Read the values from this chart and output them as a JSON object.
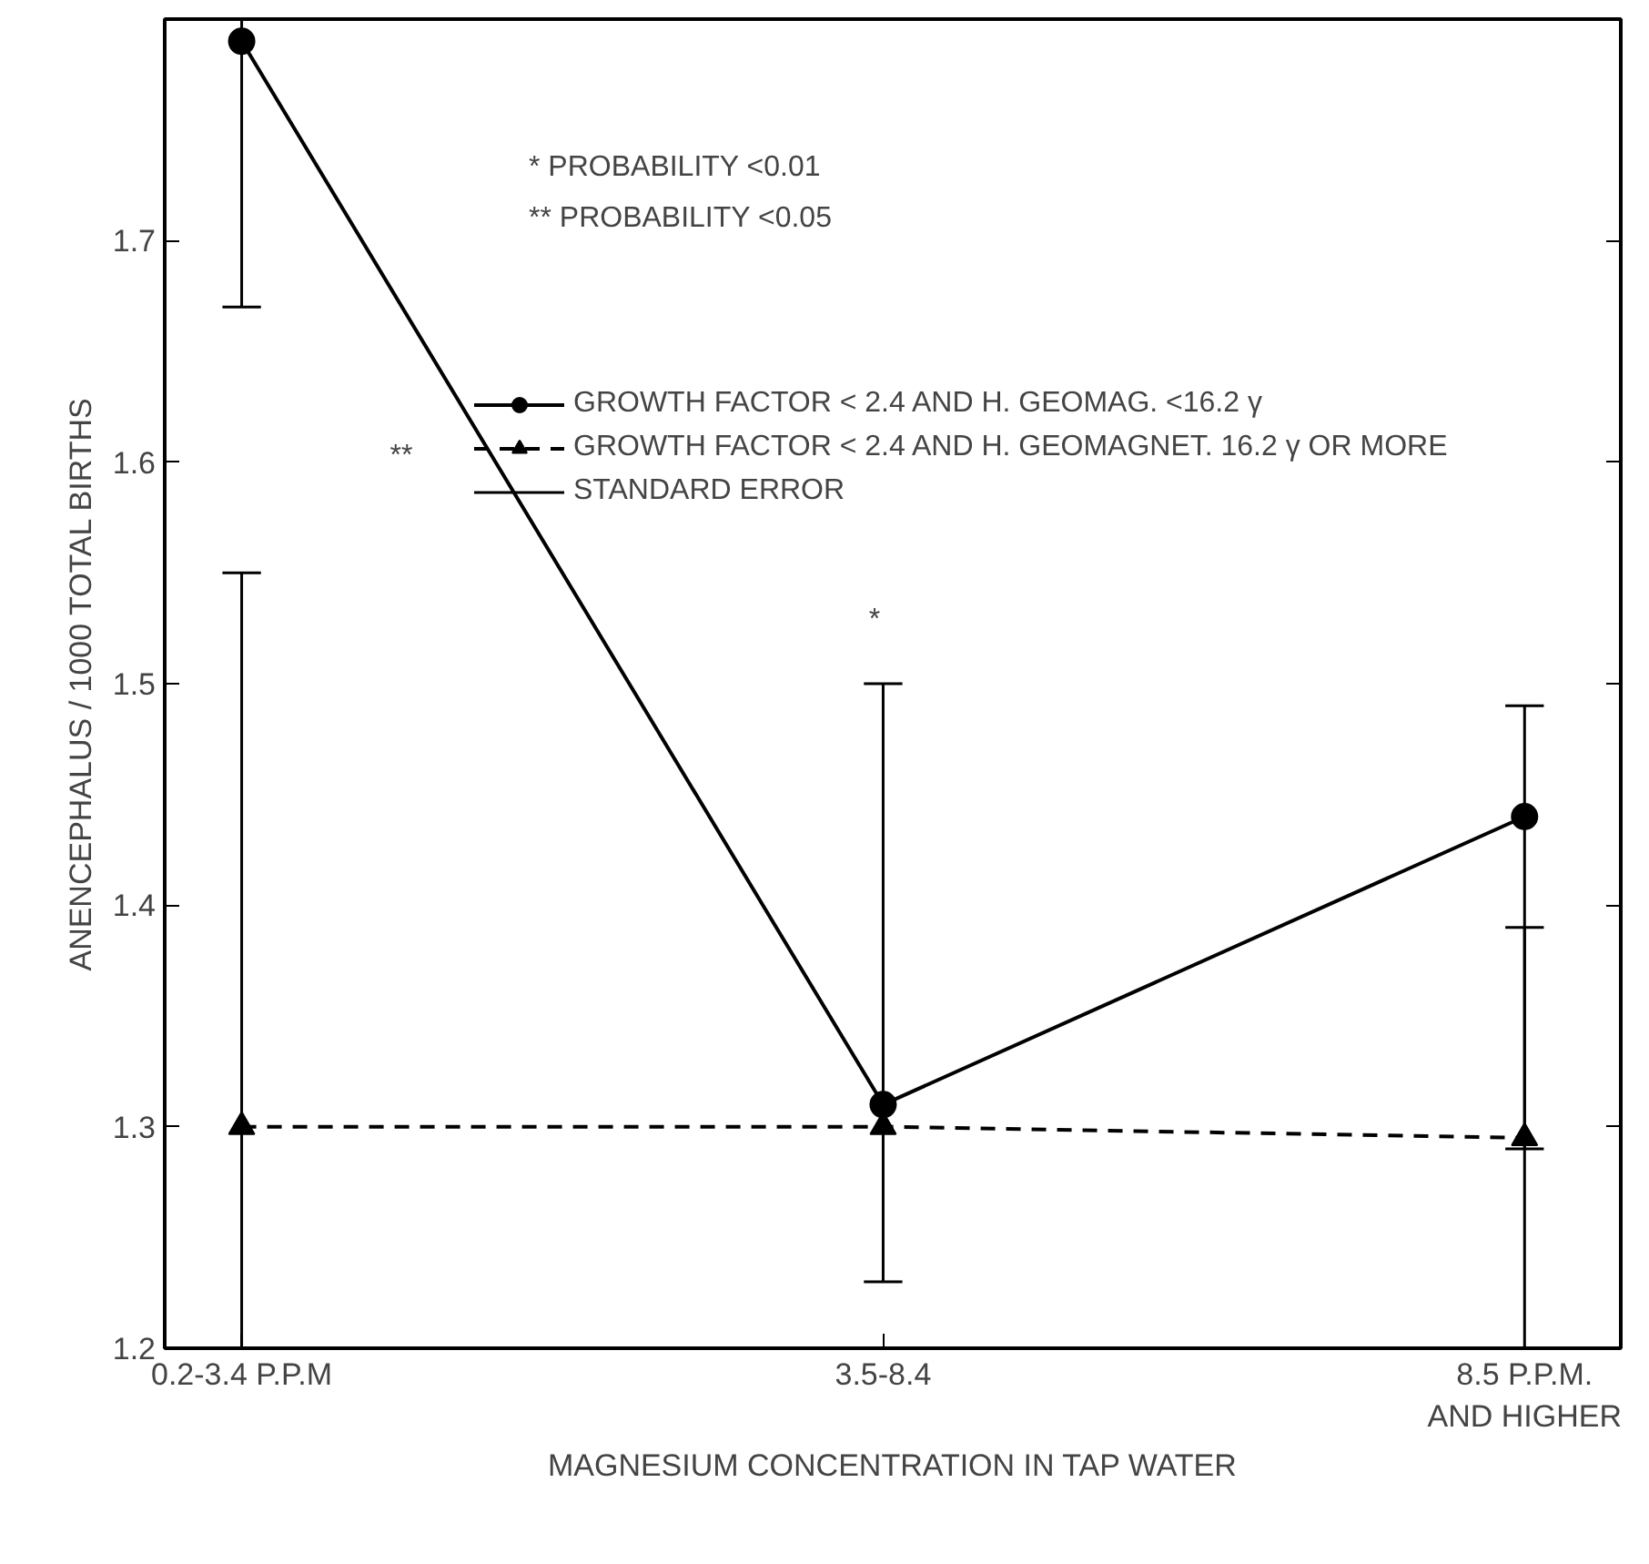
{
  "chart_data": {
    "type": "line",
    "xlabel": "MAGNESIUM CONCENTRATION IN TAP WATER",
    "ylabel": "ANENCEPHALUS / 1000 TOTAL BIRTHS",
    "categories": [
      "0.2-3.4 P.P.M",
      "3.5-8.4",
      "8.5 P.P.M.\nAND HIGHER"
    ],
    "series": [
      {
        "name": "GROWTH FACTOR < 2.4 AND H. GEOMAG. <16.2 γ",
        "color": "#000000",
        "marker": "circle",
        "line_style": "solid",
        "values": [
          1.79,
          1.31,
          1.44
        ],
        "errors": [
          [
            1.67,
            1.8
          ],
          [
            1.23,
            1.5
          ],
          [
            1.29,
            1.49
          ]
        ]
      },
      {
        "name": "GROWTH FACTOR < 2.4 AND H. GEOMAGNET. 16.2 γ OR MORE",
        "color": "#000000",
        "marker": "triangle",
        "line_style": "dashed",
        "values": [
          1.3,
          1.3,
          1.295
        ],
        "errors": [
          [
            1.2,
            1.55
          ],
          null,
          [
            1.2,
            1.39
          ]
        ]
      }
    ],
    "ylim": [
      1.2,
      1.8
    ],
    "yticks": [
      1.2,
      1.3,
      1.4,
      1.5,
      1.6,
      1.7
    ],
    "grid": false,
    "legend": "top",
    "annotations": [
      "* PROBABILITY <0.01",
      "** PROBABILITY <0.05",
      "STANDARD ERROR",
      "**",
      "*"
    ]
  }
}
